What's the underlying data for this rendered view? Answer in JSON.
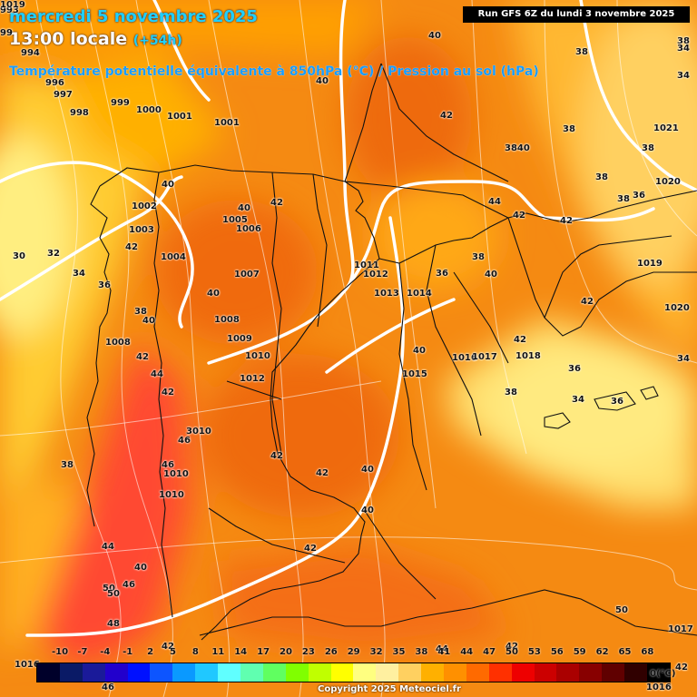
{
  "header": {
    "date_line": "mercredi 5 novembre 2025",
    "time_line": "13:00 locale",
    "lead_time": "(+54h)",
    "product": "Température potentielle équivalente à 850hPa (°C) / Pression au sol (hPa)",
    "run": "Run GFS 6Z du lundi 3 novembre 2025"
  },
  "legend": {
    "ticks": [
      "-10",
      "-7",
      "-4",
      "-1",
      "2",
      "5",
      "8",
      "11",
      "14",
      "17",
      "20",
      "23",
      "26",
      "29",
      "32",
      "35",
      "38",
      "41",
      "44",
      "47",
      "50",
      "53",
      "56",
      "59",
      "62",
      "65",
      "68"
    ],
    "unit": "(°C)",
    "colors": [
      "#00002a",
      "#0a1a66",
      "#1a1a99",
      "#2200cc",
      "#0010ff",
      "#0d55ff",
      "#0a99ff",
      "#20c8ff",
      "#60ffff",
      "#60ffb0",
      "#60ff60",
      "#80ff00",
      "#c0ff00",
      "#ffff00",
      "#ffff80",
      "#fff0a0",
      "#ffd060",
      "#ffb000",
      "#ff9000",
      "#ff6a00",
      "#ff3000",
      "#ee0000",
      "#cc0000",
      "#aa0000",
      "#880000",
      "#600000",
      "#300000",
      "#000000"
    ]
  },
  "copyright": "Copyright 2025 Meteociel.fr",
  "map_labels": [
    {
      "text": "993"
    },
    {
      "text": "99"
    },
    {
      "text": "994"
    },
    {
      "text": "996"
    },
    {
      "text": "997"
    },
    {
      "text": "998"
    },
    {
      "text": "999"
    },
    {
      "text": "1000"
    },
    {
      "text": "1001"
    },
    {
      "text": "1001"
    },
    {
      "text": "40"
    },
    {
      "text": "40"
    },
    {
      "text": "40"
    },
    {
      "text": "42"
    },
    {
      "text": "38"
    },
    {
      "text": "38"
    },
    {
      "text": "34"
    },
    {
      "text": "34"
    },
    {
      "text": "3840"
    },
    {
      "text": "1021"
    },
    {
      "text": "38"
    },
    {
      "text": "38"
    },
    {
      "text": "1020"
    },
    {
      "text": "36"
    },
    {
      "text": "1002"
    },
    {
      "text": "40"
    },
    {
      "text": "42"
    },
    {
      "text": "44"
    },
    {
      "text": "42"
    },
    {
      "text": "42"
    },
    {
      "text": "38"
    },
    {
      "text": "38"
    },
    {
      "text": "1003"
    },
    {
      "text": "1005"
    },
    {
      "text": "1006"
    },
    {
      "text": "42"
    },
    {
      "text": "30"
    },
    {
      "text": "32"
    },
    {
      "text": "34"
    },
    {
      "text": "1004"
    },
    {
      "text": "1011"
    },
    {
      "text": "1012"
    },
    {
      "text": "36"
    },
    {
      "text": "38"
    },
    {
      "text": "40"
    },
    {
      "text": "1019"
    },
    {
      "text": "1007"
    },
    {
      "text": "36"
    },
    {
      "text": "40"
    },
    {
      "text": "1013"
    },
    {
      "text": "1014"
    },
    {
      "text": "42"
    },
    {
      "text": "1020"
    },
    {
      "text": "38"
    },
    {
      "text": "40"
    },
    {
      "text": "1008"
    },
    {
      "text": "1009"
    },
    {
      "text": "1008"
    },
    {
      "text": "42"
    },
    {
      "text": "1010"
    },
    {
      "text": "40"
    },
    {
      "text": "1016"
    },
    {
      "text": "1017"
    },
    {
      "text": "1018"
    },
    {
      "text": "42"
    },
    {
      "text": "34"
    },
    {
      "text": "44"
    },
    {
      "text": "1012"
    },
    {
      "text": "1015"
    },
    {
      "text": "36"
    },
    {
      "text": "38"
    },
    {
      "text": "34"
    },
    {
      "text": "36"
    },
    {
      "text": "3010"
    },
    {
      "text": "46"
    },
    {
      "text": "38"
    },
    {
      "text": "42"
    },
    {
      "text": "46"
    },
    {
      "text": "1010"
    },
    {
      "text": "42"
    },
    {
      "text": "42"
    },
    {
      "text": "1010"
    },
    {
      "text": "40"
    },
    {
      "text": "40"
    },
    {
      "text": "42"
    },
    {
      "text": "44"
    },
    {
      "text": "40"
    },
    {
      "text": "50"
    },
    {
      "text": "46"
    },
    {
      "text": "50"
    },
    {
      "text": "48"
    },
    {
      "text": "50"
    },
    {
      "text": "1017"
    },
    {
      "text": "42"
    },
    {
      "text": "42"
    },
    {
      "text": "44"
    },
    {
      "text": "1016"
    },
    {
      "text": "46"
    },
    {
      "text": "1016"
    },
    {
      "text": "42"
    },
    {
      "text": "1019"
    }
  ]
}
